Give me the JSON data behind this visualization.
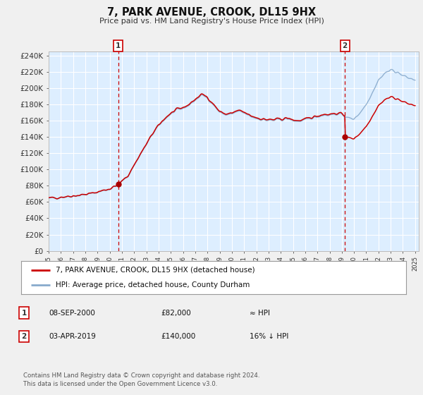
{
  "title": "7, PARK AVENUE, CROOK, DL15 9HX",
  "subtitle": "Price paid vs. HM Land Registry's House Price Index (HPI)",
  "background_color": "#f0f0f0",
  "plot_bg_color": "#ddeeff",
  "grid_color": "#ffffff",
  "hpi_line_color": "#88aacc",
  "price_line_color": "#cc0000",
  "marker_color": "#aa0000",
  "vline_color": "#cc0000",
  "ylim": [
    0,
    245000
  ],
  "ytick_step": 20000,
  "x_start_year": 1995,
  "x_end_year": 2025,
  "annotation1": {
    "label": "1",
    "date_str": "08-SEP-2000",
    "price": 82000,
    "note": "≈ HPI"
  },
  "annotation2": {
    "label": "2",
    "date_str": "03-APR-2019",
    "price": 140000,
    "note": "16% ↓ HPI"
  },
  "legend_line1": "7, PARK AVENUE, CROOK, DL15 9HX (detached house)",
  "legend_line2": "HPI: Average price, detached house, County Durham",
  "footer": "Contains HM Land Registry data © Crown copyright and database right 2024.\nThis data is licensed under the Open Government Licence v3.0.",
  "sale1_x": 2000.69,
  "sale2_x": 2019.25
}
